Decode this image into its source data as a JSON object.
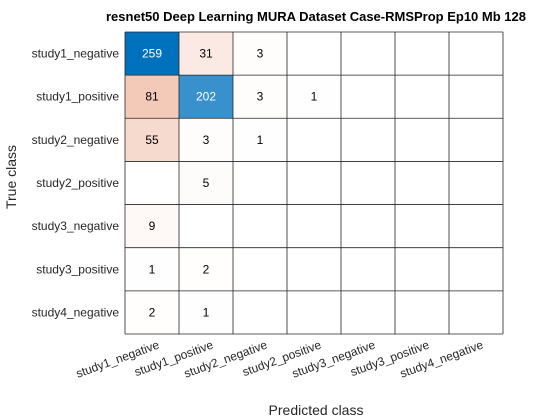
{
  "chart_data": {
    "type": "heatmap",
    "title": "resnet50 Deep Learning MURA Dataset Case-RMSProp Ep10 Mb 128",
    "xlabel": "Predicted class",
    "ylabel": "True class",
    "row_labels": [
      "study1_negative",
      "study1_positive",
      "study2_negative",
      "study2_positive",
      "study3_negative",
      "study3_positive",
      "study4_negative"
    ],
    "col_labels": [
      "study1_negative",
      "study1_positive",
      "study2_negative",
      "study2_positive",
      "study3_negative",
      "study3_positive",
      "study4_negative"
    ],
    "values": [
      [
        259,
        31,
        3,
        0,
        0,
        0,
        0
      ],
      [
        81,
        202,
        3,
        1,
        0,
        0,
        0
      ],
      [
        55,
        3,
        1,
        0,
        0,
        0,
        0
      ],
      [
        0,
        5,
        0,
        0,
        0,
        0,
        0
      ],
      [
        9,
        0,
        0,
        0,
        0,
        0,
        0
      ],
      [
        1,
        2,
        0,
        0,
        0,
        0,
        0
      ],
      [
        2,
        1,
        0,
        0,
        0,
        0,
        0
      ]
    ],
    "diagonal_color": "#0072bd",
    "offdiagonal_color": "#d95319",
    "grid": true
  }
}
